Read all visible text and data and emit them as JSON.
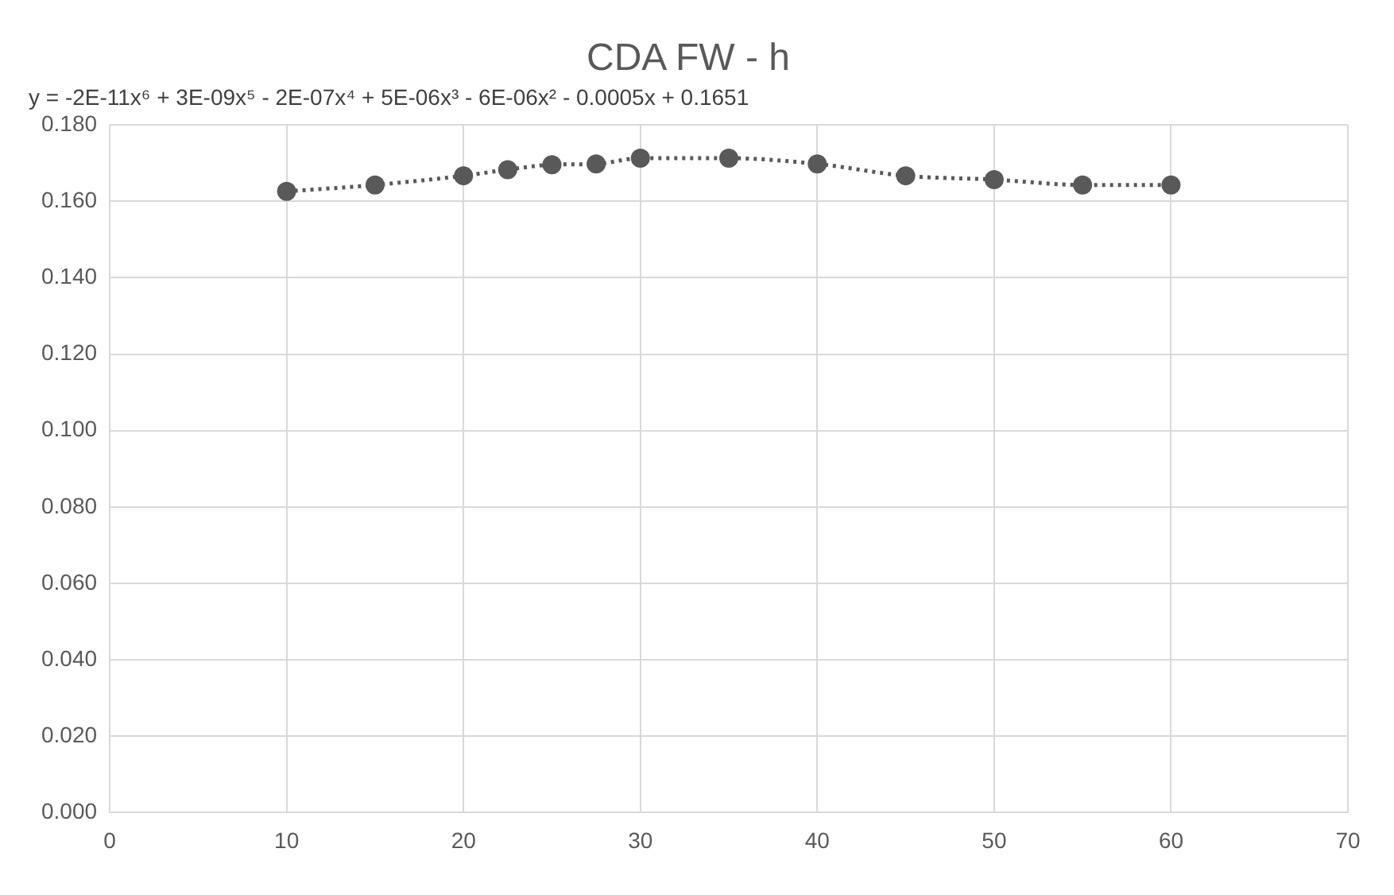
{
  "chart_data": {
    "type": "scatter",
    "title": "CDA FW - h",
    "annotations": [
      "y = -2E-11x⁶ + 3E-09x⁵ - 2E-07x⁴ + 5E-06x³ - 6E-06x² - 0.0005x + 0.1651"
    ],
    "x": [
      10,
      15,
      20,
      22.5,
      25,
      27.5,
      30,
      35,
      40,
      45,
      50,
      55,
      60
    ],
    "series": [
      {
        "type": "scatter",
        "color": "#595959",
        "values": [
          0.1626,
          0.1643,
          0.1667,
          0.1683,
          0.1696,
          0.1698,
          0.1713,
          0.1713,
          0.1698,
          0.1667,
          0.1657,
          0.1643,
          0.1643
        ]
      },
      {
        "type": "line",
        "color": "#595959",
        "marker": "none",
        "line_style": "dotted",
        "values": [
          0.1626,
          0.1643,
          0.1667,
          0.1683,
          0.1696,
          0.1698,
          0.1713,
          0.1713,
          0.1698,
          0.1667,
          0.1657,
          0.1643,
          0.1643
        ]
      }
    ],
    "xlim": [
      0,
      70
    ],
    "xticks": [
      0,
      10,
      20,
      30,
      40,
      50,
      60,
      70
    ],
    "ylim": [
      0,
      0.18
    ],
    "yticks": [
      {
        "value": 0,
        "label": "0.000"
      },
      {
        "value": 0.02,
        "label": "0.020"
      },
      {
        "value": 0.04,
        "label": "0.040"
      },
      {
        "value": 0.06,
        "label": "0.060"
      },
      {
        "value": 0.08,
        "label": "0.080"
      },
      {
        "value": 0.1,
        "label": "0.100"
      },
      {
        "value": 0.12,
        "label": "0.120"
      },
      {
        "value": 0.14,
        "label": "0.140"
      },
      {
        "value": 0.16,
        "label": "0.160"
      },
      {
        "value": 0.18,
        "label": "0.180"
      }
    ],
    "marker": "circle",
    "grid": true,
    "legend": false
  }
}
